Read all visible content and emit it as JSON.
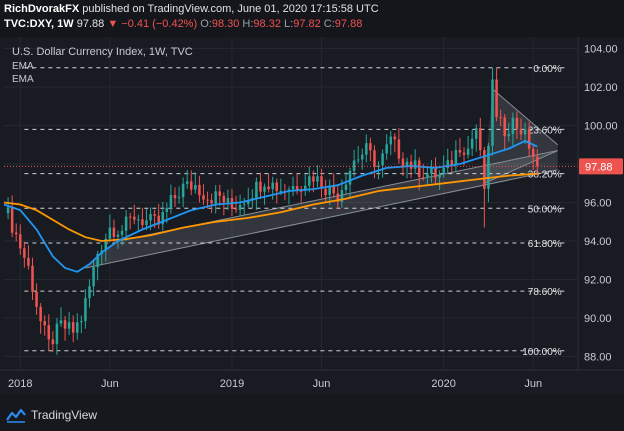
{
  "header": {
    "user": "RichDvorakFX",
    "published": "published on TradingView.com, June 01, 2020 17:15:58 UTC",
    "symbol": "TVC:DXY, 1W",
    "last": "97.88",
    "change": "−0.41 (−0.42%)",
    "o_label": "O:",
    "o_value": "98.30",
    "h_label": "H:",
    "h_value": "98.32",
    "l_label": "L:",
    "l_value": "97.82",
    "c_label": "C:",
    "c_value": "97.88"
  },
  "brand": {
    "name": "TradingView"
  },
  "colors": {
    "background": "#14161b",
    "up": "#26a69a",
    "down": "#ef5350",
    "ema_fast": "#2196f3",
    "ema_slow": "#ff9800",
    "channel": "#8a8f99",
    "fib": "#d0d3d8",
    "price_tag": "#ef5350"
  },
  "chart_data": {
    "type": "candlestick",
    "title": "U.S. Dollar Currency Index, 1W, TVC",
    "legend": [
      "EMA",
      "EMA"
    ],
    "ylim": [
      87.3,
      104.6
    ],
    "y_ticks": [
      "104.00",
      "102.00",
      "100.00",
      "98.00",
      "96.00",
      "94.00",
      "92.00",
      "90.00",
      "88.00"
    ],
    "y_tick_values": [
      104,
      102,
      100,
      98,
      96,
      94,
      92,
      90,
      88
    ],
    "x_ticks": [
      "2018",
      "Jun",
      "2019",
      "Jun",
      "2020",
      "Jun"
    ],
    "x_tick_weeks": [
      4,
      26,
      56,
      78,
      108,
      130
    ],
    "total_weeks": 141,
    "last_price": "97.88",
    "last_price_value": 97.88,
    "fib_levels": [
      {
        "label": "0.00%",
        "value": 103.0
      },
      {
        "label": "23.60%",
        "value": 99.8
      },
      {
        "label": "38.20%",
        "value": 97.5
      },
      {
        "label": "50.00%",
        "value": 95.7
      },
      {
        "label": "61.80%",
        "value": 93.9
      },
      {
        "label": "78.60%",
        "value": 91.4
      },
      {
        "label": "100.00%",
        "value": 88.3
      }
    ],
    "anchors": [
      [
        0,
        95.9
      ],
      [
        3,
        94.3
      ],
      [
        6,
        92.6
      ],
      [
        9,
        89.8
      ],
      [
        11,
        88.6
      ],
      [
        14,
        89.6
      ],
      [
        17,
        89.3
      ],
      [
        19,
        90.0
      ],
      [
        21,
        91.6
      ],
      [
        23,
        93.4
      ],
      [
        26,
        94.7
      ],
      [
        29,
        94.6
      ],
      [
        32,
        95.3
      ],
      [
        35,
        95.0
      ],
      [
        38,
        94.9
      ],
      [
        41,
        96.0
      ],
      [
        44,
        96.8
      ],
      [
        47,
        96.9
      ],
      [
        50,
        96.3
      ],
      [
        53,
        96.3
      ],
      [
        56,
        95.7
      ],
      [
        60,
        96.4
      ],
      [
        64,
        97.2
      ],
      [
        68,
        96.7
      ],
      [
        72,
        96.9
      ],
      [
        76,
        97.4
      ],
      [
        79,
        96.8
      ],
      [
        82,
        96.4
      ],
      [
        86,
        98.2
      ],
      [
        89,
        98.7
      ],
      [
        92,
        97.9
      ],
      [
        95,
        99.2
      ],
      [
        98,
        98.3
      ],
      [
        101,
        97.8
      ],
      [
        104,
        97.5
      ],
      [
        107,
        97.4
      ],
      [
        109,
        97.8
      ],
      [
        112,
        99.0
      ],
      [
        114,
        98.8
      ],
      [
        116,
        99.9
      ],
      [
        118,
        96.8
      ],
      [
        119,
        98.5
      ],
      [
        120,
        102.6
      ],
      [
        121,
        100.2
      ],
      [
        123,
        99.8
      ],
      [
        125,
        100.2
      ],
      [
        127,
        99.8
      ],
      [
        129,
        99.0
      ],
      [
        131,
        97.88
      ]
    ],
    "ema_fast_points": [
      [
        0,
        95.9
      ],
      [
        4,
        95.6
      ],
      [
        8,
        94.6
      ],
      [
        12,
        93.2
      ],
      [
        15,
        92.6
      ],
      [
        18,
        92.4
      ],
      [
        21,
        92.8
      ],
      [
        24,
        93.4
      ],
      [
        28,
        94.0
      ],
      [
        34,
        94.6
      ],
      [
        40,
        95.1
      ],
      [
        46,
        95.6
      ],
      [
        52,
        95.9
      ],
      [
        58,
        96.0
      ],
      [
        64,
        96.3
      ],
      [
        70,
        96.6
      ],
      [
        76,
        96.7
      ],
      [
        82,
        96.9
      ],
      [
        88,
        97.4
      ],
      [
        94,
        97.8
      ],
      [
        100,
        97.9
      ],
      [
        106,
        97.8
      ],
      [
        112,
        98.0
      ],
      [
        118,
        98.4
      ],
      [
        124,
        98.8
      ],
      [
        128,
        99.2
      ],
      [
        131,
        98.9
      ]
    ],
    "ema_slow_points": [
      [
        0,
        96.0
      ],
      [
        4,
        95.9
      ],
      [
        8,
        95.6
      ],
      [
        12,
        95.1
      ],
      [
        16,
        94.6
      ],
      [
        20,
        94.2
      ],
      [
        24,
        94.0
      ],
      [
        30,
        94.1
      ],
      [
        36,
        94.3
      ],
      [
        44,
        94.7
      ],
      [
        52,
        95.0
      ],
      [
        60,
        95.2
      ],
      [
        68,
        95.5
      ],
      [
        76,
        95.9
      ],
      [
        84,
        96.2
      ],
      [
        92,
        96.6
      ],
      [
        100,
        96.8
      ],
      [
        108,
        97.0
      ],
      [
        116,
        97.2
      ],
      [
        124,
        97.4
      ],
      [
        131,
        97.5
      ]
    ],
    "channel_lines": [
      [
        [
          20,
          92.6
        ],
        [
          136,
          97.7
        ]
      ],
      [
        [
          28,
          94.0
        ],
        [
          136,
          98.7
        ]
      ],
      [
        [
          120,
          101.9
        ],
        [
          136,
          99.0
        ]
      ],
      [
        [
          118,
          97.0
        ],
        [
          136,
          98.7
        ]
      ]
    ]
  }
}
